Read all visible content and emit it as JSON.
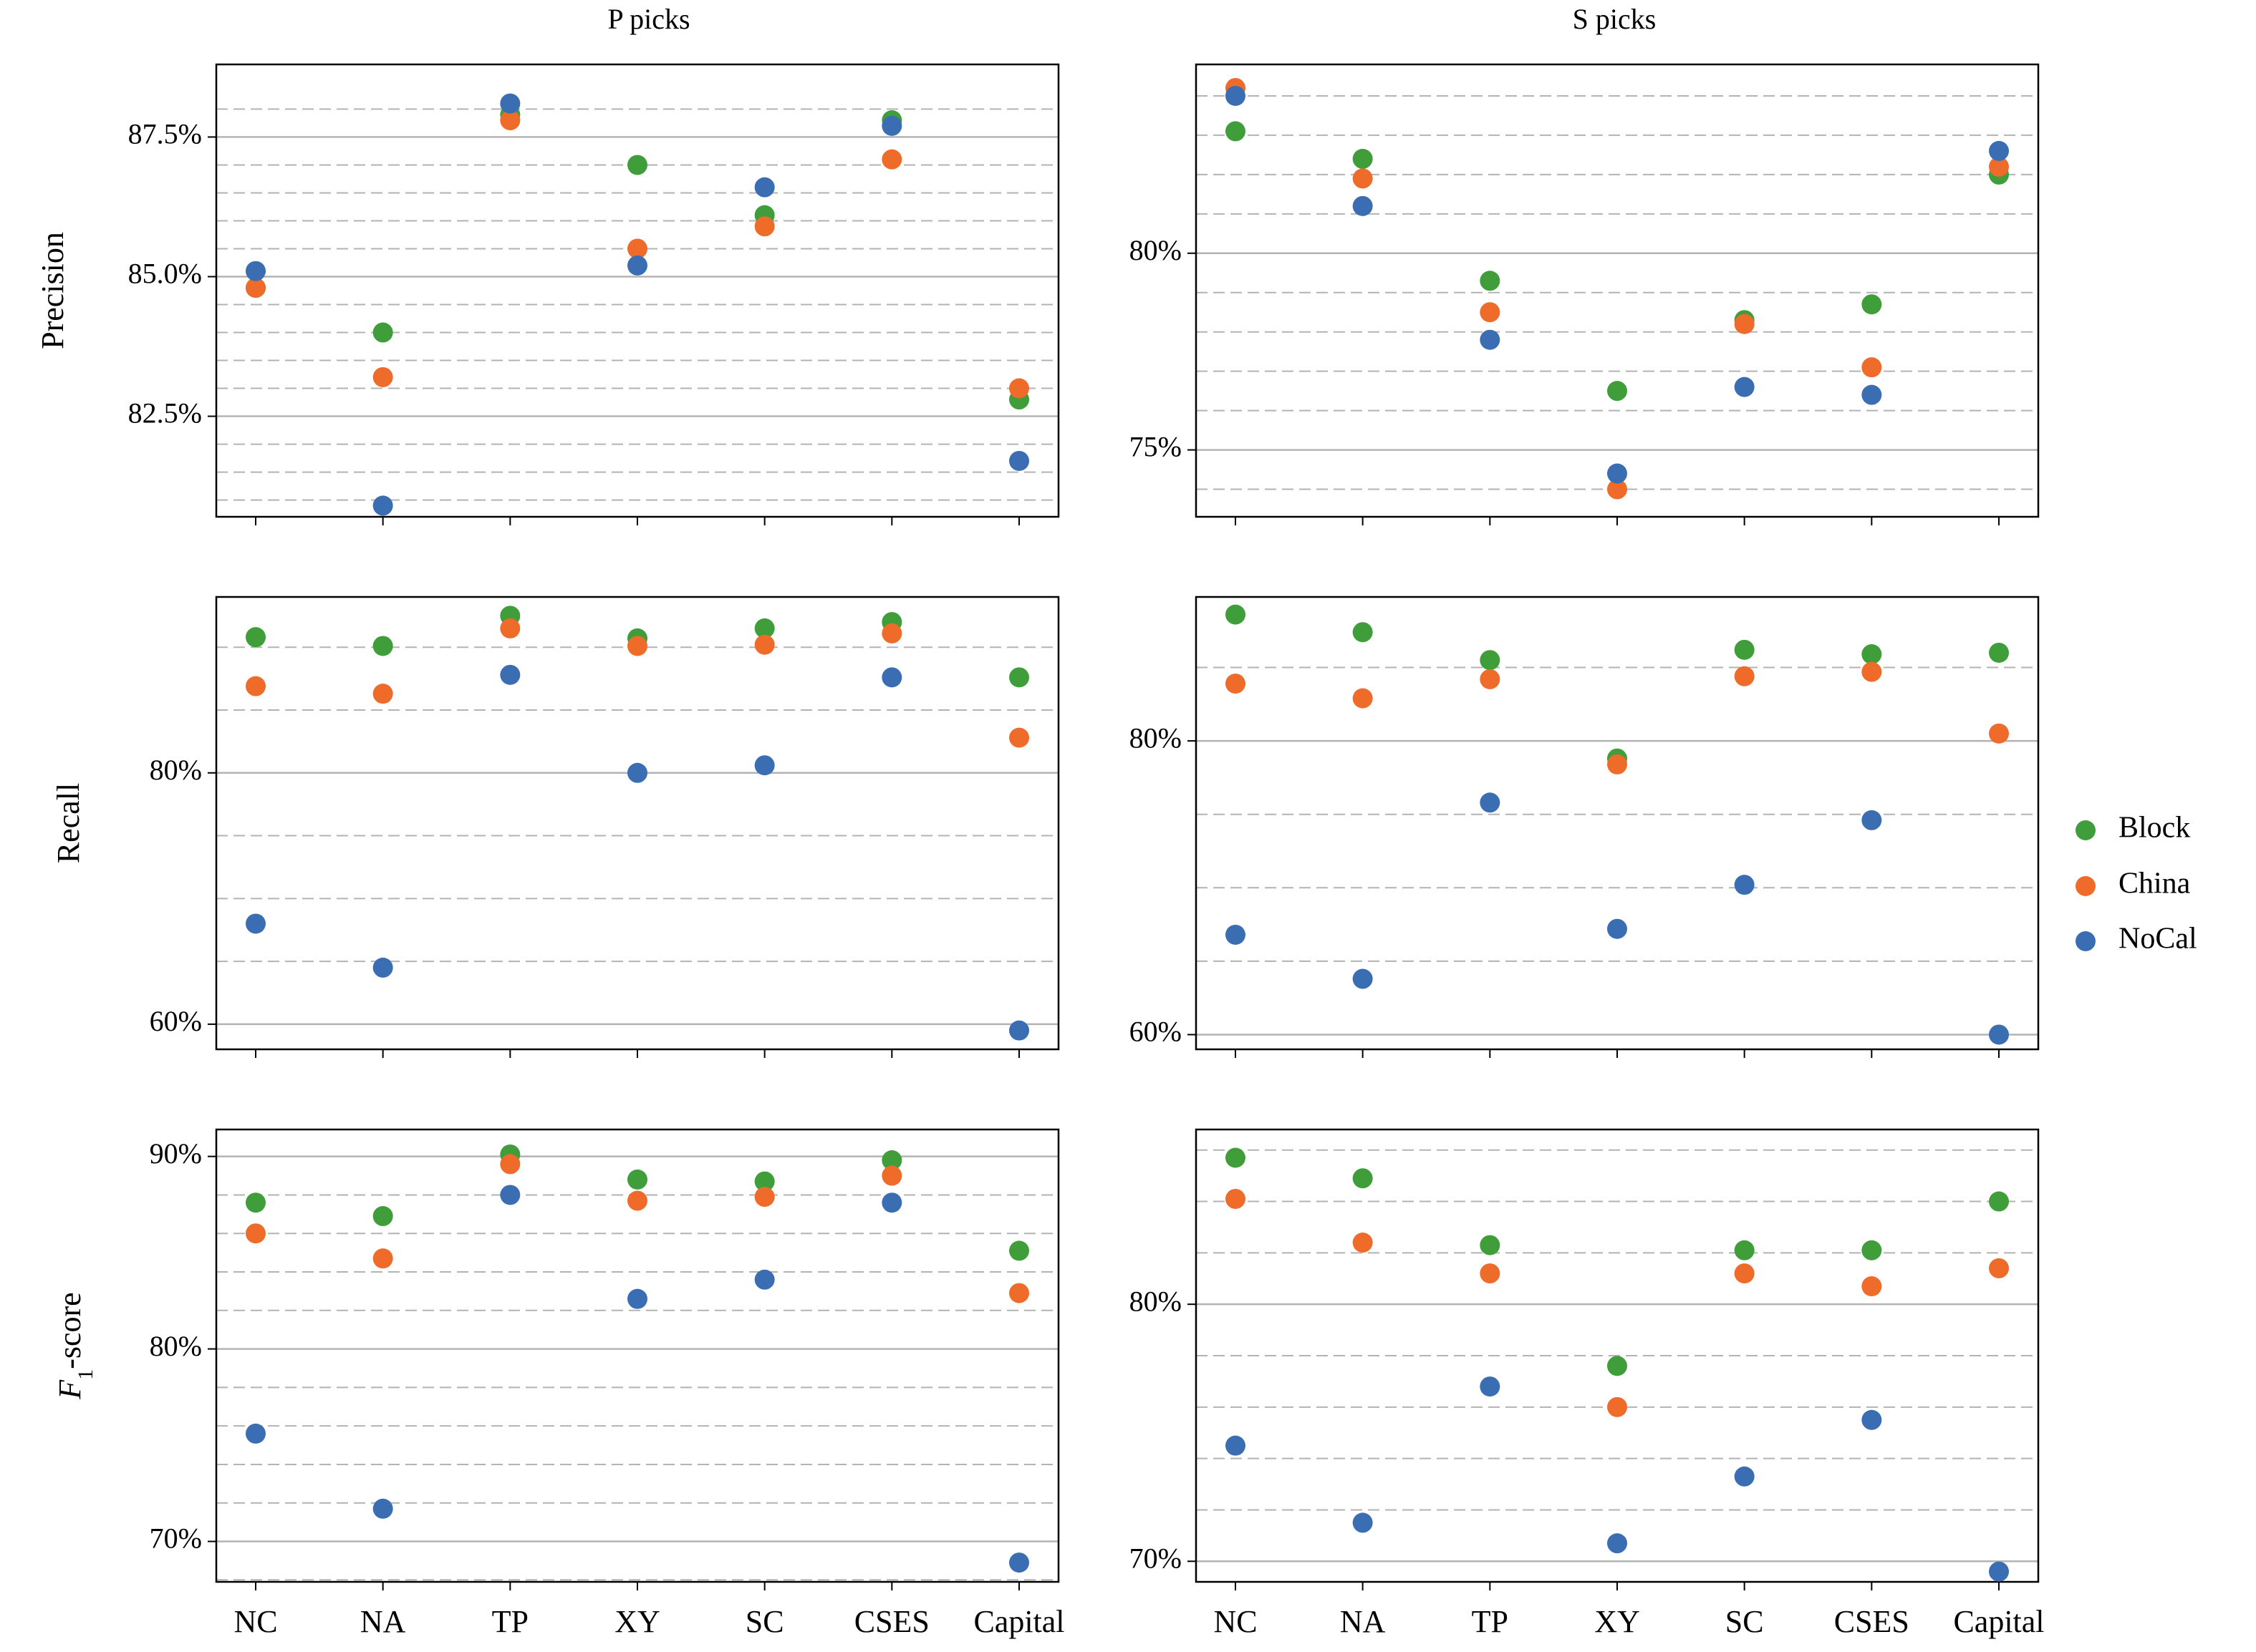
{
  "column_titles": [
    "P picks",
    "S picks"
  ],
  "row_labels": [
    "Precision",
    "Recall",
    "F",
    "1",
    "-score"
  ],
  "categories": [
    "NC",
    "NA",
    "TP",
    "XY",
    "SC",
    "CSES",
    "Capital"
  ],
  "legend": [
    {
      "name": "Block",
      "color": "#3f9e3a"
    },
    {
      "name": "China",
      "color": "#ef6b2a"
    },
    {
      "name": "NoCal",
      "color": "#3b6db3"
    }
  ],
  "chart_data": [
    {
      "type": "scatter",
      "panel": "P picks - Precision",
      "title": "P picks",
      "ylabel": "Precision",
      "categories": [
        "NC",
        "NA",
        "TP",
        "XY",
        "SC",
        "CSES",
        "Capital"
      ],
      "ylim": [
        80.7,
        88.8
      ],
      "major_ticks": [
        82.5,
        85.0,
        87.5
      ],
      "tick_labels": [
        "82.5%",
        "85.0%",
        "87.5%"
      ],
      "minor_grid": [
        81.0,
        81.5,
        82.0,
        83.0,
        83.5,
        84.0,
        84.5,
        85.5,
        86.0,
        86.5,
        87.0,
        88.0
      ],
      "series": [
        {
          "name": "Block",
          "values": [
            84.8,
            84.0,
            87.9,
            87.0,
            86.1,
            87.8,
            82.8
          ]
        },
        {
          "name": "China",
          "values": [
            84.8,
            83.2,
            87.8,
            85.5,
            85.9,
            87.1,
            83.0
          ]
        },
        {
          "name": "NoCal",
          "values": [
            85.1,
            80.9,
            88.1,
            85.2,
            86.6,
            87.7,
            81.7
          ]
        }
      ]
    },
    {
      "type": "scatter",
      "panel": "S picks - Precision",
      "title": "S picks",
      "categories": [
        "NC",
        "NA",
        "TP",
        "XY",
        "SC",
        "CSES",
        "Capital"
      ],
      "ylim": [
        73.3,
        84.8
      ],
      "major_ticks": [
        75,
        80
      ],
      "tick_labels": [
        "75%",
        "80%"
      ],
      "minor_grid": [
        74,
        76,
        77,
        78,
        79,
        81,
        82,
        83,
        84
      ],
      "series": [
        {
          "name": "Block",
          "values": [
            83.1,
            82.4,
            79.3,
            76.5,
            78.3,
            78.7,
            82.0
          ]
        },
        {
          "name": "China",
          "values": [
            84.2,
            81.9,
            78.5,
            74.0,
            78.2,
            77.1,
            82.2
          ]
        },
        {
          "name": "NoCal",
          "values": [
            84.0,
            81.2,
            77.8,
            74.4,
            76.6,
            76.4,
            82.6
          ]
        }
      ]
    },
    {
      "type": "scatter",
      "panel": "P picks - Recall",
      "ylabel": "Recall",
      "categories": [
        "NC",
        "NA",
        "TP",
        "XY",
        "SC",
        "CSES",
        "Capital"
      ],
      "ylim": [
        58,
        94
      ],
      "major_ticks": [
        60,
        80
      ],
      "tick_labels": [
        "60%",
        "80%"
      ],
      "minor_grid": [
        65,
        70,
        75,
        85,
        90
      ],
      "series": [
        {
          "name": "Block",
          "values": [
            90.8,
            90.1,
            92.5,
            90.7,
            91.5,
            92.0,
            87.6
          ]
        },
        {
          "name": "China",
          "values": [
            86.9,
            86.3,
            91.5,
            90.1,
            90.2,
            91.1,
            82.8
          ]
        },
        {
          "name": "NoCal",
          "values": [
            68.0,
            64.5,
            87.8,
            80.0,
            80.6,
            87.6,
            59.5
          ]
        }
      ]
    },
    {
      "type": "scatter",
      "panel": "S picks - Recall",
      "categories": [
        "NC",
        "NA",
        "TP",
        "XY",
        "SC",
        "CSES",
        "Capital"
      ],
      "ylim": [
        59,
        89.8
      ],
      "major_ticks": [
        60,
        80
      ],
      "tick_labels": [
        "60%",
        "80%"
      ],
      "minor_grid": [
        65,
        70,
        75,
        85
      ],
      "series": [
        {
          "name": "Block",
          "values": [
            88.6,
            87.4,
            85.5,
            78.8,
            86.2,
            85.9,
            86.0
          ]
        },
        {
          "name": "China",
          "values": [
            83.9,
            82.9,
            84.2,
            78.4,
            84.4,
            84.7,
            80.5
          ]
        },
        {
          "name": "NoCal",
          "values": [
            66.8,
            63.8,
            75.8,
            67.2,
            70.2,
            74.6,
            60.0
          ]
        }
      ]
    },
    {
      "type": "scatter",
      "panel": "P picks - F1-score",
      "ylabel": "F1-score",
      "categories": [
        "NC",
        "NA",
        "TP",
        "XY",
        "SC",
        "CSES",
        "Capital"
      ],
      "ylim": [
        67.9,
        91.4
      ],
      "major_ticks": [
        70,
        80,
        90
      ],
      "tick_labels": [
        "70%",
        "80%",
        "90%"
      ],
      "minor_grid": [
        68,
        72,
        74,
        76,
        78,
        82,
        84,
        86,
        88
      ],
      "series": [
        {
          "name": "Block",
          "values": [
            87.6,
            86.9,
            90.1,
            88.8,
            88.7,
            89.8,
            85.1
          ]
        },
        {
          "name": "China",
          "values": [
            86.0,
            84.7,
            89.6,
            87.7,
            87.9,
            89.0,
            82.9
          ]
        },
        {
          "name": "NoCal",
          "values": [
            75.6,
            71.7,
            88.0,
            82.6,
            83.6,
            87.6,
            68.9
          ]
        }
      ]
    },
    {
      "type": "scatter",
      "panel": "S picks - F1-score",
      "categories": [
        "NC",
        "NA",
        "TP",
        "XY",
        "SC",
        "CSES",
        "Capital"
      ],
      "ylim": [
        69.2,
        86.8
      ],
      "major_ticks": [
        70,
        80
      ],
      "tick_labels": [
        "70%",
        "80%"
      ],
      "minor_grid": [
        72,
        74,
        76,
        78,
        82,
        84,
        86
      ],
      "series": [
        {
          "name": "Block",
          "values": [
            85.7,
            84.9,
            82.3,
            77.6,
            82.1,
            82.1,
            84.0
          ]
        },
        {
          "name": "China",
          "values": [
            84.1,
            82.4,
            81.2,
            76.0,
            81.2,
            80.7,
            81.4
          ]
        },
        {
          "name": "NoCal",
          "values": [
            74.5,
            71.5,
            76.8,
            70.7,
            73.3,
            75.5,
            69.6
          ]
        }
      ]
    }
  ]
}
